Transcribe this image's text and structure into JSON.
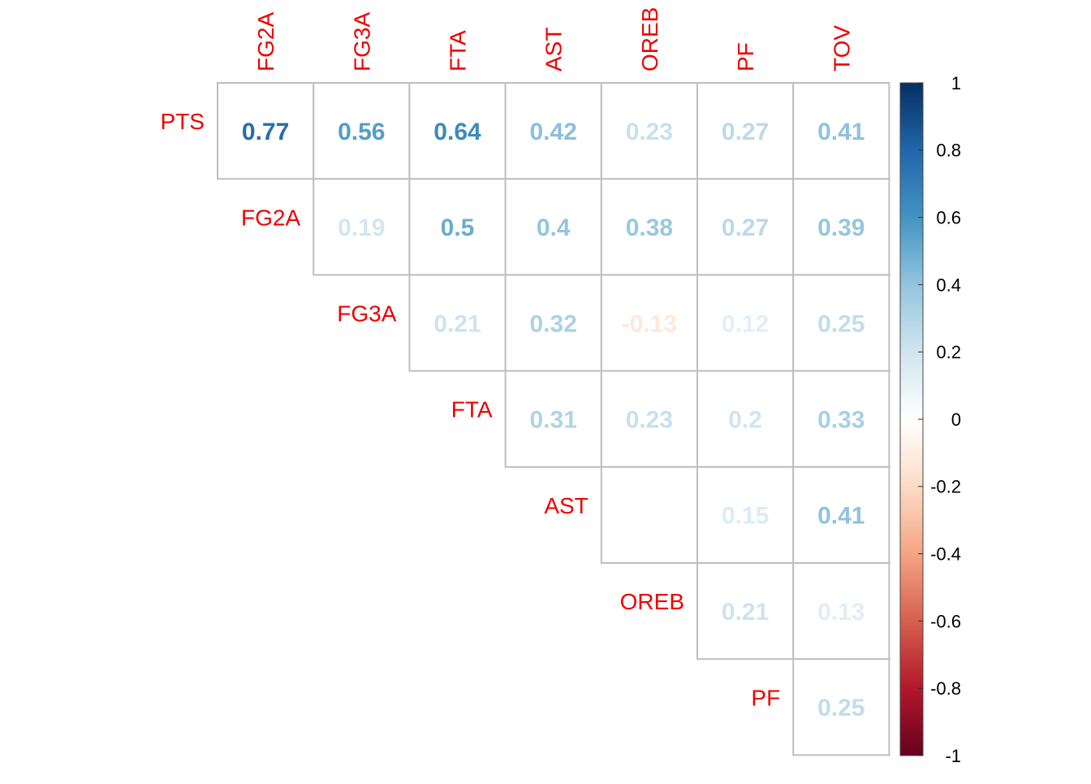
{
  "chart_data": {
    "type": "heatmap",
    "variables": [
      "PTS",
      "FG2A",
      "FG3A",
      "FTA",
      "AST",
      "OREB",
      "PF",
      "TOV"
    ],
    "row_labels": [
      "PTS",
      "FG2A",
      "FG3A",
      "FTA",
      "AST",
      "OREB",
      "PF"
    ],
    "column_labels": [
      "FG2A",
      "FG3A",
      "FTA",
      "AST",
      "OREB",
      "PF",
      "TOV"
    ],
    "layout": "upper-triangle",
    "rows": [
      {
        "label": "PTS",
        "values": [
          0.77,
          0.56,
          0.64,
          0.42,
          0.23,
          0.27,
          0.41
        ],
        "labels": [
          "0.77",
          "0.56",
          "0.64",
          "0.42",
          "0.23",
          "0.27",
          "0.41"
        ]
      },
      {
        "label": "FG2A",
        "values": [
          0.19,
          0.5,
          0.4,
          0.38,
          0.27,
          0.39
        ],
        "labels": [
          "0.19",
          "0.5",
          "0.4",
          "0.38",
          "0.27",
          "0.39"
        ]
      },
      {
        "label": "FG3A",
        "values": [
          0.21,
          0.32,
          -0.13,
          0.12,
          0.25
        ],
        "labels": [
          "0.21",
          "0.32",
          "-0.13",
          "0.12",
          "0.25"
        ]
      },
      {
        "label": "FTA",
        "values": [
          0.31,
          0.23,
          0.2,
          0.33
        ],
        "labels": [
          "0.31",
          "0.23",
          "0.2",
          "0.33"
        ]
      },
      {
        "label": "AST",
        "values": [
          0.01,
          0.15,
          0.41
        ],
        "labels": [
          "0.01",
          "0.15",
          "0.41"
        ]
      },
      {
        "label": "OREB",
        "values": [
          0.21,
          0.13
        ],
        "labels": [
          "0.21",
          "0.13"
        ]
      },
      {
        "label": "PF",
        "values": [
          0.25
        ],
        "labels": [
          "0.25"
        ]
      }
    ],
    "colorbar": {
      "range": [
        -1,
        1
      ],
      "ticks": [
        1,
        0.8,
        0.6,
        0.4,
        0.2,
        0,
        -0.2,
        -0.4,
        -0.6,
        -0.8,
        -1
      ],
      "tick_labels": [
        "1",
        "0.8",
        "0.6",
        "0.4",
        "0.2",
        "0",
        "-0.2",
        "-0.4",
        "-0.6",
        "-0.8",
        "-1"
      ],
      "colors": [
        "#67001F",
        "#B2182B",
        "#D6604D",
        "#F4A582",
        "#FDDBC7",
        "#FFFFFF",
        "#D1E5F0",
        "#92C5DE",
        "#4393C3",
        "#2166AC",
        "#053061"
      ]
    },
    "label_color": "#EE0000",
    "grid_color": "#BEBEBE"
  }
}
